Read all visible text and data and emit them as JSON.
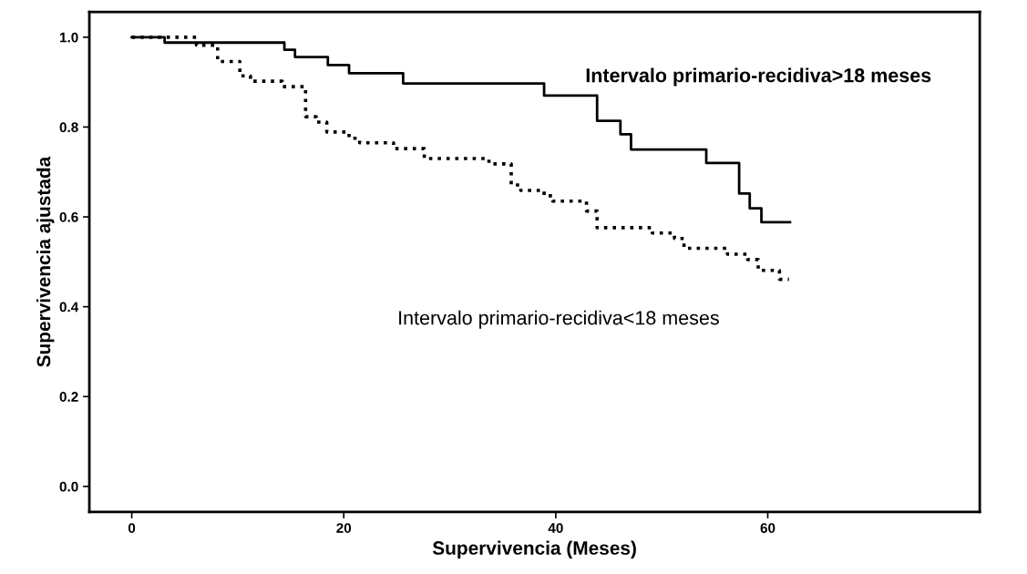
{
  "chart_data": {
    "type": "step",
    "xlabel": "Supervivencia (Meses)",
    "ylabel": "Supervivencia ajustada",
    "xlim": [
      -4,
      80
    ],
    "xticks": [
      0,
      20,
      40,
      60
    ],
    "ylim": [
      -0.057,
      1.056
    ],
    "yticks": [
      {
        "value": 0,
        "label": "0.0"
      },
      {
        "value": 0.2,
        "label": "0.2"
      },
      {
        "value": 0.4,
        "label": "0.4"
      },
      {
        "value": 0.6,
        "label": "0.6"
      },
      {
        "value": 0.8,
        "label": "0.8"
      },
      {
        "value": 1,
        "label": "1.0"
      }
    ],
    "grid": false,
    "legend": false,
    "series": [
      {
        "name": "Intervalo primario-recidiva>18 meses",
        "color": "#000000",
        "line_style": "solid",
        "x": [
          0,
          3.1,
          14.4,
          15.4,
          18.5,
          20.5,
          25.6,
          38.9,
          43.9,
          46.1,
          47.1,
          54.2,
          57.3,
          58.3,
          59.4,
          62.1
        ],
        "values": [
          1.0,
          0.988,
          0.972,
          0.956,
          0.938,
          0.92,
          0.897,
          0.87,
          0.814,
          0.784,
          0.75,
          0.72,
          0.652,
          0.619,
          0.588,
          0.588
        ]
      },
      {
        "name": "Intervalo primario-recidiva<18 meses",
        "color": "#000000",
        "line_style": "dotted",
        "x": [
          0,
          6.1,
          8.1,
          10.2,
          11.2,
          14.2,
          16.4,
          17.4,
          18.4,
          20.5,
          21.5,
          24.7,
          27.6,
          33.7,
          35.8,
          36.7,
          38.9,
          39.7,
          42.9,
          43.9,
          49.1,
          51.2,
          52.1,
          56.2,
          58.1,
          59.1,
          61.1,
          62.0
        ],
        "values": [
          1.0,
          0.982,
          0.946,
          0.914,
          0.902,
          0.89,
          0.823,
          0.811,
          0.789,
          0.775,
          0.765,
          0.752,
          0.73,
          0.718,
          0.671,
          0.659,
          0.647,
          0.635,
          0.613,
          0.576,
          0.564,
          0.552,
          0.53,
          0.517,
          0.505,
          0.481,
          0.461,
          0.461
        ]
      }
    ]
  }
}
